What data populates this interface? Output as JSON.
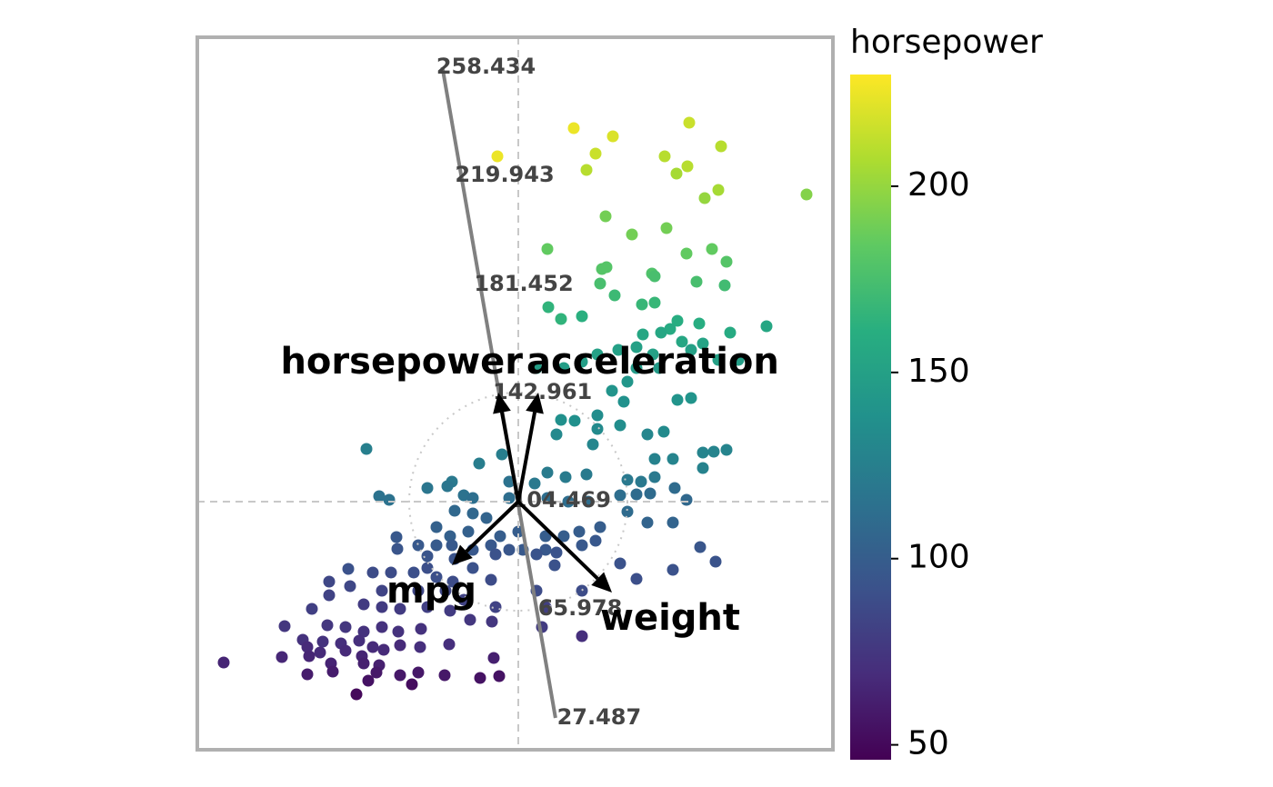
{
  "chart_data": {
    "type": "scatter",
    "colorbar_label": "horsepower",
    "colormap": "viridis",
    "clim": [
      46,
      230
    ],
    "cticks": [
      50,
      100,
      150,
      200
    ],
    "xlim": [
      -35.3,
      34.6
    ],
    "ylim": [
      -27.3,
      51.1
    ],
    "x": [
      -2.3,
      6.1,
      10.4,
      8.5,
      18.8,
      7.5,
      16.1,
      18.6,
      17.4,
      22.3,
      20.5,
      22.0,
      31.7,
      9.6,
      12.5,
      16.3,
      3.2,
      18.5,
      21.3,
      22.9,
      9.2,
      9.7,
      14.7,
      15.0,
      9.0,
      19.6,
      22.7,
      10.6,
      13.6,
      15.0,
      3.3,
      4.7,
      7.0,
      17.5,
      19.9,
      16.7,
      23.3,
      27.3,
      15.7,
      13.7,
      18.0,
      20.3,
      11.0,
      13.0,
      14.8,
      19.0,
      22.0,
      24.2,
      8.7,
      7.0,
      5.0,
      2.0,
      13.0,
      15.5,
      12.0,
      10.3,
      17.5,
      19.0,
      11.6,
      4.7,
      6.2,
      8.7,
      11.2,
      16.0,
      8.7,
      4.2,
      8.2,
      14.2,
      20.3,
      21.5,
      22.9,
      17.0,
      15.0,
      20.3,
      -16.7,
      -1.8,
      -4.3,
      3.2,
      5.2,
      7.5,
      12.0,
      13.5,
      15.0,
      1.8,
      -7.3,
      -7.8,
      -10.0,
      -15.3,
      -14.2,
      -6.0,
      -5.0,
      -1.0,
      3.2,
      5.5,
      7.7,
      11.2,
      13.0,
      14.5,
      17.2,
      18.5,
      -1.0,
      12.0,
      14.2,
      17.0,
      -7.0,
      -5.0,
      -3.5,
      -9.0,
      -7.5,
      -5.5,
      -2.0,
      0.0,
      3.0,
      5.0,
      6.7,
      9.0,
      -9.0,
      -11.0,
      -7.3,
      -5.0,
      -3.0,
      0.5,
      3.0,
      7.0,
      8.5,
      -13.4,
      -13.3,
      -10.0,
      -7.0,
      -5.0,
      -2.5,
      -1.0,
      2.0,
      4.2,
      -10.0,
      -11.5,
      -14.0,
      -16.0,
      -18.7,
      -9.0,
      -7.2,
      -3.0,
      4.0,
      11.2,
      13.0,
      17.0,
      20.0,
      21.7,
      -20.8,
      -18.5,
      -15.0,
      -11.0,
      -8.0,
      -6.0,
      -2.5,
      2.0,
      7.0,
      -22.7,
      -20.8,
      -17.0,
      -15.0,
      -13.0,
      -10.0,
      -7.5,
      -5.3,
      -2.9,
      2.6,
      3.0,
      -25.7,
      -21.0,
      -19.0,
      -17.0,
      -15.0,
      -13.2,
      -10.7,
      -23.7,
      -21.5,
      -19.5,
      -17.5,
      -16.0,
      -13.0,
      -10.8,
      -7.6,
      -21.8,
      -19.0,
      -17.2,
      -14.8,
      -26.0,
      -23.2,
      -32.4,
      -23.0,
      -20.6,
      -17.0,
      -15.3,
      -2.7,
      7.0,
      -23.2,
      -20.4,
      -15.6,
      -13.0,
      -11.0,
      -8.1,
      -4.2,
      -2.1,
      -16.5,
      -11.7,
      -17.8
    ],
    "values": [
      38.0,
      41.1,
      40.2,
      38.3,
      41.7,
      36.5,
      38.0,
      36.9,
      36.1,
      39.1,
      33.4,
      34.3,
      33.8,
      31.4,
      29.4,
      30.1,
      27.8,
      27.3,
      27.8,
      26.4,
      25.6,
      25.8,
      25.1,
      24.8,
      24.0,
      24.2,
      23.8,
      22.7,
      21.7,
      21.9,
      21.4,
      20.1,
      20.4,
      19.9,
      19.6,
      19.0,
      18.6,
      19.3,
      18.6,
      18.4,
      17.6,
      17.4,
      16.7,
      17.0,
      16.2,
      16.7,
      15.6,
      15.6,
      16.2,
      15.4,
      14.7,
      14.7,
      14.7,
      14.7,
      13.2,
      12.2,
      11.2,
      11.4,
      11.0,
      9.0,
      8.9,
      9.5,
      8.4,
      7.7,
      8.0,
      7.4,
      6.3,
      7.4,
      5.4,
      5.5,
      5.7,
      4.7,
      4.7,
      3.7,
      5.8,
      5.2,
      4.2,
      3.2,
      2.7,
      3.0,
      2.4,
      2.2,
      2.7,
      2.0,
      2.2,
      1.7,
      1.5,
      0.6,
      0.2,
      0.7,
      0.4,
      0.4,
      0.4,
      0.0,
      0.0,
      0.7,
      0.8,
      0.9,
      1.5,
      0.2,
      2.2,
      -1.1,
      -2.3,
      -2.3,
      -1.0,
      -1.3,
      -1.8,
      -2.8,
      -3.8,
      -3.3,
      -3.8,
      -3.3,
      -3.8,
      -3.8,
      -3.3,
      -2.8,
      -4.8,
      -4.8,
      -4.8,
      -5.3,
      -4.8,
      -5.3,
      -5.3,
      -4.8,
      -4.3,
      -3.9,
      -5.2,
      -6.0,
      -6.3,
      -7.3,
      -5.8,
      -5.3,
      -5.8,
      -5.6,
      -7.3,
      -7.8,
      -7.8,
      -7.8,
      -7.4,
      -8.3,
      -8.8,
      -8.6,
      -7.0,
      -6.8,
      -8.5,
      -7.5,
      -5.0,
      -6.6,
      -8.8,
      -9.3,
      -9.8,
      -9.8,
      -9.8,
      -10.8,
      -11.6,
      -9.8,
      -9.8,
      -11.8,
      -10.3,
      -11.3,
      -11.6,
      -11.8,
      -11.6,
      -12.0,
      -13.0,
      -13.2,
      -13.8,
      -11.6,
      -13.7,
      -13.6,
      -13.8,
      -14.3,
      -13.8,
      -14.3,
      -14.0,
      -15.2,
      -15.4,
      -15.6,
      -15.3,
      -16.0,
      -15.8,
      -16.0,
      -15.7,
      -16.6,
      -16.4,
      -17.0,
      -16.3,
      -17.1,
      -16.0,
      -17.7,
      -17.0,
      -17.8,
      -17.8,
      -18.0,
      -17.2,
      -14.8,
      -19.0,
      -18.7,
      -18.8,
      -19.1,
      -18.8,
      -19.1,
      -19.4,
      -19.2,
      -19.7,
      -20.1,
      -21.2
    ],
    "color_values": [
      225,
      225,
      220,
      215,
      215,
      210,
      210,
      210,
      205,
      210,
      200,
      205,
      195,
      190,
      190,
      190,
      185,
      185,
      185,
      180,
      180,
      180,
      178,
      175,
      175,
      175,
      172,
      170,
      168,
      168,
      165,
      165,
      162,
      160,
      160,
      158,
      158,
      155,
      155,
      155,
      155,
      152,
      150,
      150,
      150,
      150,
      150,
      148,
      150,
      148,
      148,
      148,
      145,
      145,
      142,
      140,
      140,
      140,
      138,
      137,
      137,
      135,
      135,
      133,
      133,
      132,
      130,
      130,
      128,
      128,
      128,
      128,
      127,
      127,
      125,
      124,
      123,
      122,
      122,
      121,
      120,
      120,
      120,
      120,
      120,
      118,
      118,
      115,
      115,
      115,
      113,
      112,
      112,
      112,
      112,
      112,
      110,
      110,
      110,
      108,
      115,
      110,
      105,
      105,
      108,
      107,
      105,
      103,
      102,
      102,
      100,
      100,
      100,
      100,
      100,
      100,
      98,
      97,
      97,
      96,
      96,
      97,
      96,
      96,
      96,
      96,
      94,
      94,
      93,
      92,
      92,
      95,
      93,
      93,
      90,
      90,
      88,
      88,
      92,
      90,
      88,
      88,
      92,
      92,
      90,
      92,
      95,
      93,
      85,
      85,
      83,
      85,
      85,
      82,
      82,
      88,
      88,
      80,
      82,
      78,
      78,
      78,
      80,
      78,
      75,
      75,
      78,
      80,
      75,
      75,
      75,
      72,
      72,
      72,
      72,
      72,
      72,
      70,
      70,
      68,
      68,
      70,
      70,
      68,
      68,
      65,
      68,
      66,
      68,
      65,
      65,
      64,
      62,
      62,
      62,
      70,
      60,
      60,
      58,
      58,
      58,
      58,
      55,
      55,
      55,
      52,
      50
    ],
    "calibrated_axis": {
      "tick_values": [
        258.434,
        219.943,
        181.452,
        142.961,
        104.469,
        65.978,
        27.487
      ],
      "tick_x": [
        -8.35,
        -6.3,
        -4.2,
        -2.14,
        -0.07,
        2.0,
        4.09
      ],
      "tick_y": [
        47.8,
        35.9,
        23.9,
        12.0,
        0.1,
        -11.8,
        -23.8
      ]
    },
    "loadings": [
      {
        "name": "horsepower",
        "x": -2.2,
        "y": 12.0
      },
      {
        "name": "acceleration",
        "x": 2.2,
        "y": 12.0
      },
      {
        "name": "mpg",
        "x": -7.3,
        "y": -7.0
      },
      {
        "name": "weight",
        "x": 10.3,
        "y": -10.0
      }
    ]
  }
}
